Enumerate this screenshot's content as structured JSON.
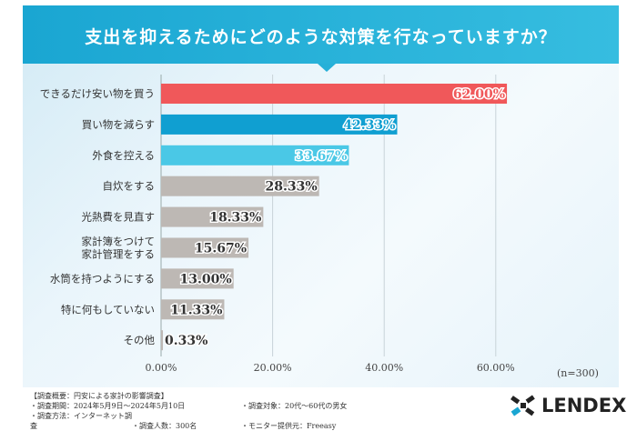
{
  "header": {
    "title": "支出を抑えるためにどのような対策を行なっていますか？"
  },
  "chart_data": {
    "type": "bar",
    "orientation": "horizontal",
    "title": "支出を抑えるためにどのような対策を行なっていますか？",
    "categories": [
      "できるだけ安い物を買う",
      "買い物を減らす",
      "外食を控える",
      "自炊をする",
      "光熱費を見直す",
      "家計簿をつけて\n家計管理をする",
      "水筒を持つようにする",
      "特に何もしていない",
      "その他"
    ],
    "values": [
      62.0,
      42.33,
      33.67,
      28.33,
      18.33,
      15.67,
      13.0,
      11.33,
      0.33
    ],
    "value_labels": [
      "62.00%",
      "42.33%",
      "33.67%",
      "28.33%",
      "18.33%",
      "15.67%",
      "13.00%",
      "11.33%",
      "0.33%"
    ],
    "bar_colors": [
      "#f0585a",
      "#109fd1",
      "#4ac8e6",
      "#bdb8b4",
      "#bdb8b4",
      "#bdb8b4",
      "#bdb8b4",
      "#bdb8b4",
      "#bdb8b4"
    ],
    "xlim": [
      0,
      70
    ],
    "xticks": [
      0,
      20,
      40,
      60
    ],
    "xtick_labels": [
      "0.00%",
      "20.00%",
      "40.00%",
      "60.00%"
    ],
    "grid": true,
    "note": "(n=300)"
  },
  "footer": {
    "summary": "【調査概要：円安による家計の影響調査】",
    "period": "・調査期間：2024年5月9日～2024年5月10日",
    "target": "・調査対象：20代～60代の男女",
    "method": "・調査方法：インターネット調査",
    "count": "・調査人数：300名",
    "provider": "・モニター提供元：Freeasy"
  },
  "logo": {
    "text": "LENDEX"
  }
}
